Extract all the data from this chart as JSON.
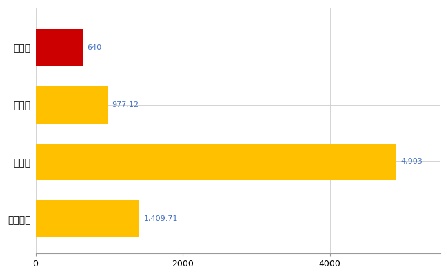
{
  "categories": [
    "全国平均",
    "県最大",
    "県平均",
    "本巣市"
  ],
  "values": [
    1409.71,
    4903,
    977.12,
    640
  ],
  "bar_colors": [
    "#FFC000",
    "#FFC000",
    "#FFC000",
    "#CC0000"
  ],
  "value_labels": [
    "1,409.71",
    "4,903",
    "977.12",
    "640"
  ],
  "xlim": [
    0,
    5500
  ],
  "xticks": [
    0,
    2000,
    4000
  ],
  "background_color": "#FFFFFF",
  "grid_color": "#CCCCCC",
  "label_color": "#4472C4",
  "bar_height": 0.65,
  "figsize": [
    6.5,
    4.0
  ],
  "dpi": 100
}
